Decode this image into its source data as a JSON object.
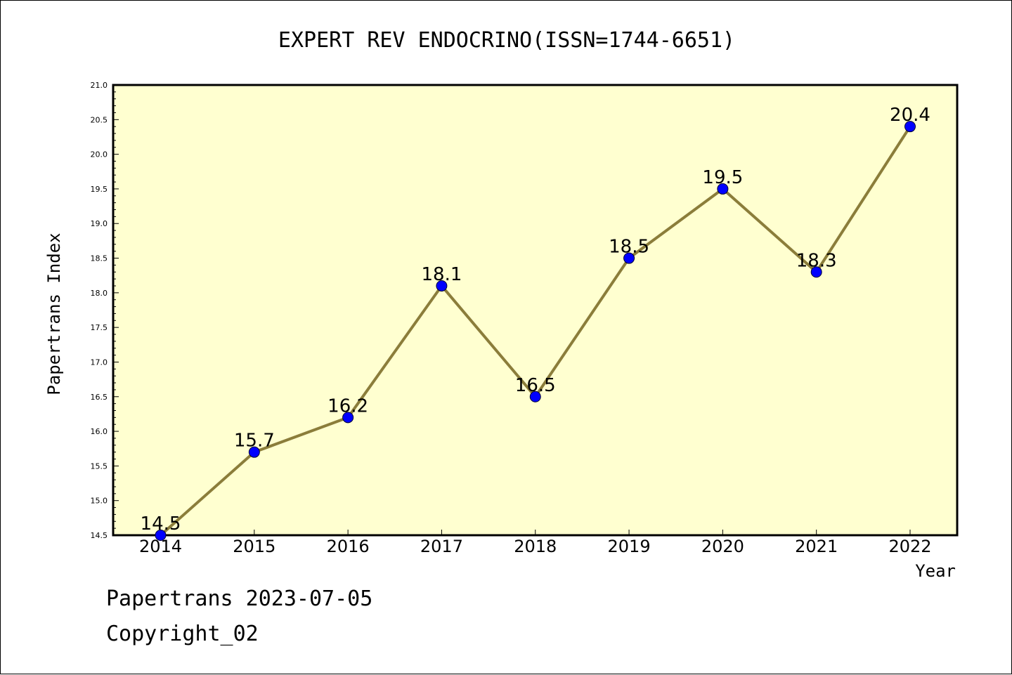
{
  "footer": {
    "line1": "Papertrans 2023-07-05",
    "line2": "Copyright_02"
  },
  "colors": {
    "plot_background": "#ffffd0",
    "line": "#8b7d3a",
    "marker": "#0000ff"
  },
  "chart_data": {
    "type": "line",
    "title": "EXPERT REV ENDOCRINO(ISSN=1744-6651)",
    "xlabel": "Year",
    "ylabel": "Papertrans Index",
    "categories": [
      "2014",
      "2015",
      "2016",
      "2017",
      "2018",
      "2019",
      "2020",
      "2021",
      "2022"
    ],
    "values": [
      14.5,
      15.7,
      16.2,
      18.1,
      16.5,
      18.5,
      19.5,
      18.3,
      20.4
    ],
    "data_labels": [
      "14.5",
      "15.7",
      "16.2",
      "18.1",
      "16.5",
      "18.5",
      "19.5",
      "18.3",
      "20.4"
    ],
    "ylim": [
      14.5,
      21.0
    ],
    "yticks": [
      "14.5",
      "15.0",
      "15.5",
      "16.0",
      "16.5",
      "17.0",
      "17.5",
      "18.0",
      "18.5",
      "19.0",
      "19.5",
      "20.0",
      "20.5",
      "21.0"
    ],
    "grid": false,
    "legend": "none"
  }
}
